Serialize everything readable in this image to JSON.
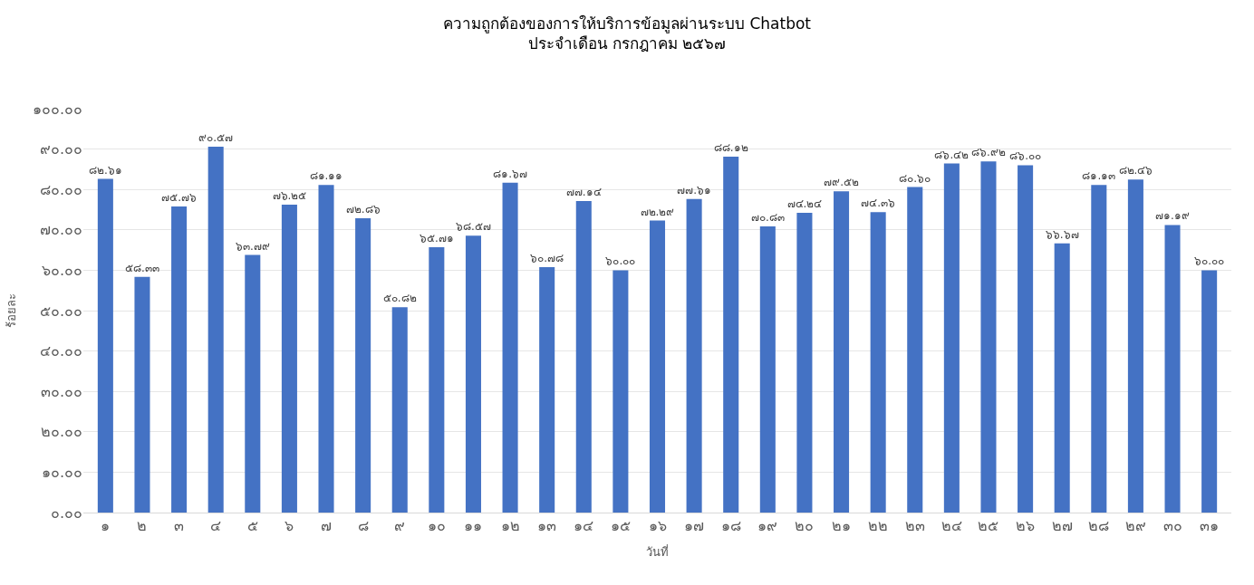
{
  "chart_data": {
    "type": "bar",
    "title": "ความถูกต้องของการให้บริการข้อมูลผ่านระบบ Chatbot\nประจำเดือน กรกฎาคม ๒๕๖๗",
    "xlabel": "วันที่",
    "ylabel": "ร้อยละ",
    "categories": [
      "๑",
      "๒",
      "๓",
      "๔",
      "๕",
      "๖",
      "๗",
      "๘",
      "๙",
      "๑๐",
      "๑๑",
      "๑๒",
      "๑๓",
      "๑๔",
      "๑๕",
      "๑๖",
      "๑๗",
      "๑๘",
      "๑๙",
      "๒๐",
      "๒๑",
      "๒๒",
      "๒๓",
      "๒๔",
      "๒๕",
      "๒๖",
      "๒๗",
      "๒๘",
      "๒๙",
      "๓๐",
      "๓๑"
    ],
    "values": [
      82.61,
      58.33,
      75.76,
      90.57,
      63.79,
      76.25,
      81.11,
      72.86,
      50.82,
      65.71,
      68.57,
      81.67,
      60.78,
      77.14,
      60.0,
      72.29,
      77.61,
      88.12,
      70.83,
      74.24,
      79.52,
      74.36,
      80.6,
      86.42,
      86.92,
      86.0,
      66.67,
      81.13,
      82.46,
      71.19,
      60.0
    ],
    "value_labels": [
      "๘๒.๖๑",
      "๕๘.๓๓",
      "๗๕.๗๖",
      "๙๐.๕๗",
      "๖๓.๗๙",
      "๗๖.๒๕",
      "๘๑.๑๑",
      "๗๒.๘๖",
      "๕๐.๘๒",
      "๖๕.๗๑",
      "๖๘.๕๗",
      "๘๑.๖๗",
      "๖๐.๗๘",
      "๗๗.๑๔",
      "๖๐.๐๐",
      "๗๒.๒๙",
      "๗๗.๖๑",
      "๘๘.๑๒",
      "๗๐.๘๓",
      "๗๔.๒๔",
      "๗๙.๕๒",
      "๗๔.๓๖",
      "๘๐.๖๐",
      "๘๖.๔๒",
      "๘๖.๙๒",
      "๘๖.๐๐",
      "๖๖.๖๗",
      "๘๑.๑๓",
      "๘๒.๔๖",
      "๗๑.๑๙",
      "๖๐.๐๐"
    ],
    "color": "#4472c4",
    "ylim": [
      0,
      100
    ],
    "yticks": [
      {
        "value": 0,
        "label": "๐.๐๐"
      },
      {
        "value": 10,
        "label": "๑๐.๐๐"
      },
      {
        "value": 20,
        "label": "๒๐.๐๐"
      },
      {
        "value": 30,
        "label": "๓๐.๐๐"
      },
      {
        "value": 40,
        "label": "๔๐.๐๐"
      },
      {
        "value": 50,
        "label": "๕๐.๐๐"
      },
      {
        "value": 60,
        "label": "๖๐.๐๐"
      },
      {
        "value": 70,
        "label": "๗๐.๐๐"
      },
      {
        "value": 80,
        "label": "๘๐.๐๐"
      },
      {
        "value": 90,
        "label": "๙๐.๐๐"
      },
      {
        "value": 100,
        "label": "๑๐๐.๐๐"
      }
    ],
    "grid": "y",
    "legend": false
  }
}
